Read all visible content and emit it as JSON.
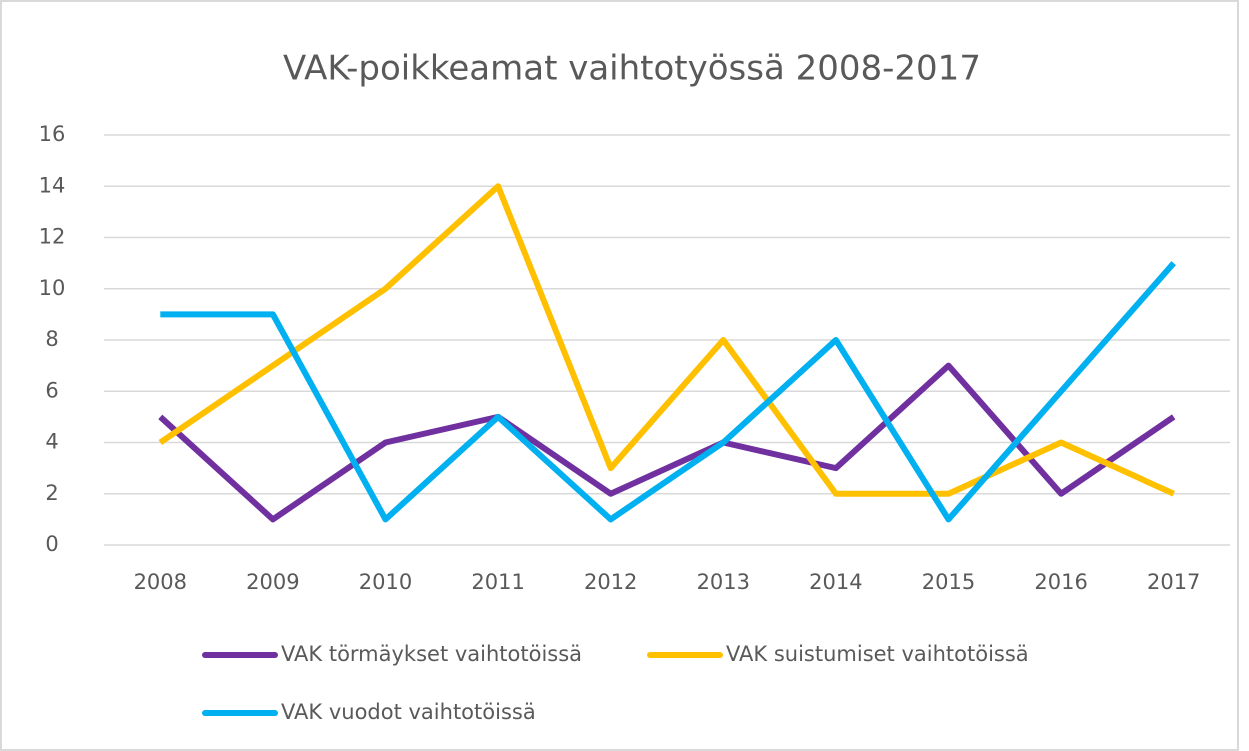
{
  "chart_data": {
    "type": "line",
    "title": "VAK-poikkeamat vaihtotyössä 2008-2017",
    "categories": [
      "2008",
      "2009",
      "2010",
      "2011",
      "2012",
      "2013",
      "2014",
      "2015",
      "2016",
      "2017"
    ],
    "series": [
      {
        "name": "VAK törmäykset vaihtotöissä",
        "color": "#7030a0",
        "values": [
          5,
          1,
          4,
          5,
          2,
          4,
          3,
          7,
          2,
          5
        ]
      },
      {
        "name": "VAK suistumiset vaihtotöissä",
        "color": "#ffc000",
        "values": [
          4,
          7,
          10,
          14,
          3,
          8,
          2,
          2,
          4,
          2
        ]
      },
      {
        "name": "VAK vuodot vaihtotöissä",
        "color": "#00b0f0",
        "values": [
          9,
          9,
          1,
          5,
          1,
          4,
          8,
          1,
          6,
          11
        ]
      }
    ],
    "ylim": [
      0,
      16
    ],
    "yticks": [
      0,
      2,
      4,
      6,
      8,
      10,
      12,
      14,
      16
    ],
    "grid": true,
    "legend": "bottom"
  }
}
